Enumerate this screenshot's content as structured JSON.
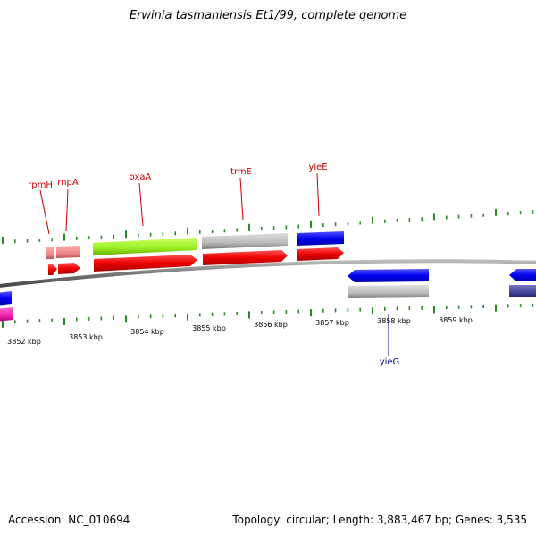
{
  "title": "Erwinia tasmaniensis Et1/99, complete genome",
  "footer": {
    "accession_label": "Accession:",
    "accession": "NC_010694",
    "topology_label": "Topology:",
    "topology": "circular",
    "length_label": "Length:",
    "length": "3,883,467 bp",
    "genes_label": "Genes:",
    "genes": "3,535"
  },
  "scale_ticks": [
    {
      "label": "3852 kbp"
    },
    {
      "label": "3853 kbp"
    },
    {
      "label": "3854 kbp"
    },
    {
      "label": "3855 kbp"
    },
    {
      "label": "3856 kbp"
    },
    {
      "label": "3857 kbp"
    },
    {
      "label": "3858 kbp"
    },
    {
      "label": "3859 kbp"
    }
  ],
  "gene_labels": [
    {
      "name": "rpmH",
      "strand": "forward"
    },
    {
      "name": "rnpA",
      "strand": "forward"
    },
    {
      "name": "oxaA",
      "strand": "forward"
    },
    {
      "name": "trmE",
      "strand": "forward"
    },
    {
      "name": "yieE",
      "strand": "forward"
    },
    {
      "name": "yieG",
      "strand": "reverse"
    }
  ],
  "colors": {
    "forward_label": "#cc0000",
    "reverse_label": "#000099",
    "tick": "#2a8a2a",
    "backbone": "#808080",
    "cds_red": "#ee1111",
    "cds_blue": "#1111dd",
    "cds_lime": "#99ee22",
    "cds_gray": "#bbbbbb",
    "cds_pink": "#ee8888",
    "cds_magenta": "#ee22aa",
    "cds_slate": "#444499"
  }
}
